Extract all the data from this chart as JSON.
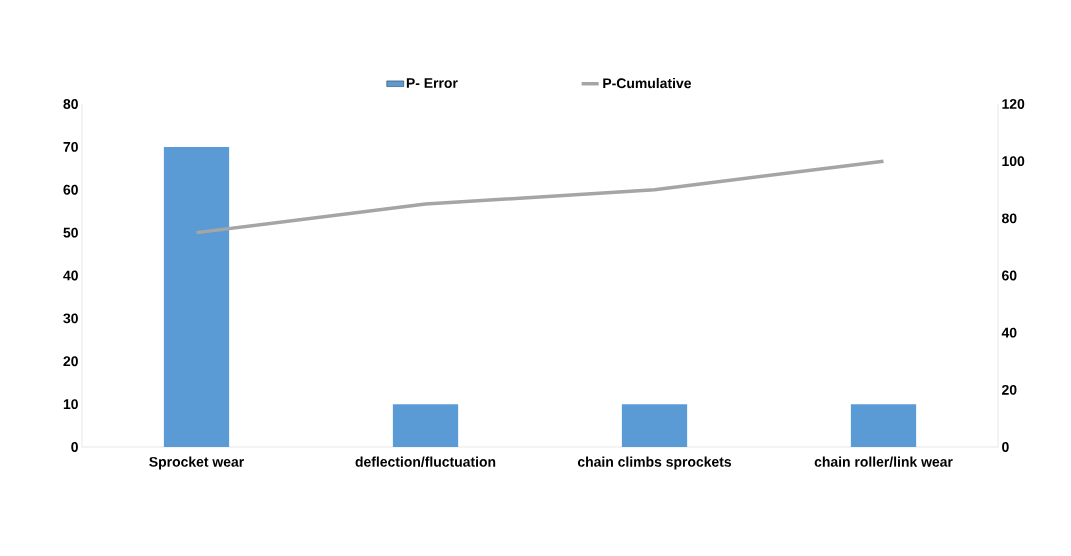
{
  "chart_data": {
    "type": "bar",
    "categories": [
      "Sprocket wear",
      "deflection/fluctuation",
      "chain climbs sprockets",
      "chain roller/link wear"
    ],
    "series": [
      {
        "name": "P- Error",
        "color": "#5b9bd5",
        "values": [
          70,
          10,
          10,
          10
        ]
      },
      {
        "name": "P-Cumulative",
        "type": "line",
        "color": "#a5a5a5",
        "values": [
          75,
          85,
          90,
          100
        ],
        "axis": "y2"
      }
    ],
    "ylim": [
      0,
      80
    ],
    "yticks": [
      0,
      10,
      20,
      30,
      40,
      50,
      60,
      70,
      80
    ],
    "y2lim": [
      0,
      120
    ],
    "y2ticks": [
      0,
      20,
      40,
      60,
      80,
      100,
      120
    ],
    "legend": "top",
    "grid": false,
    "marker": "none"
  }
}
